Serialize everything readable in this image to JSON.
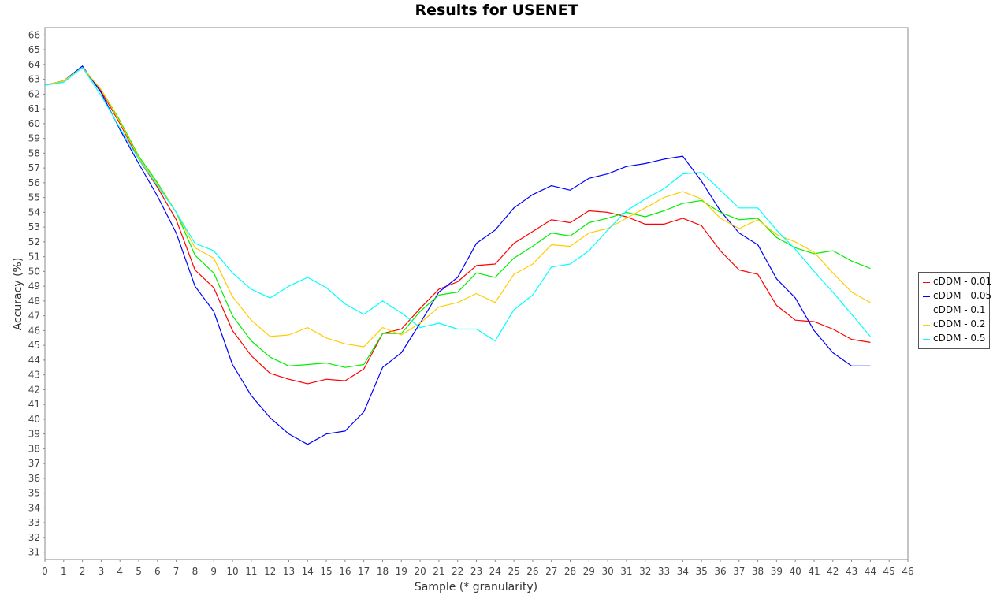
{
  "chart_data": {
    "type": "line",
    "title": "Results for USENET",
    "xlabel": "Sample (* granularity)",
    "ylabel": "Accuracy (%)",
    "xlim": [
      0,
      46
    ],
    "ylim": [
      30.5,
      66.5
    ],
    "x_ticks": [
      0,
      1,
      2,
      3,
      4,
      5,
      6,
      7,
      8,
      9,
      10,
      11,
      12,
      13,
      14,
      15,
      16,
      17,
      18,
      19,
      20,
      21,
      22,
      23,
      24,
      25,
      26,
      27,
      28,
      29,
      30,
      31,
      32,
      33,
      34,
      35,
      36,
      37,
      38,
      39,
      40,
      41,
      42,
      43,
      44,
      45,
      46
    ],
    "y_ticks": [
      31,
      32,
      33,
      34,
      35,
      36,
      37,
      38,
      39,
      40,
      41,
      42,
      43,
      44,
      45,
      46,
      47,
      48,
      49,
      50,
      51,
      52,
      53,
      54,
      55,
      56,
      57,
      58,
      59,
      60,
      61,
      62,
      63,
      64,
      65,
      66
    ],
    "grid": false,
    "legend_position": "right",
    "x": [
      0,
      1,
      2,
      3,
      4,
      5,
      6,
      7,
      8,
      9,
      10,
      11,
      12,
      13,
      14,
      15,
      16,
      17,
      18,
      19,
      20,
      21,
      22,
      23,
      24,
      25,
      26,
      27,
      28,
      29,
      30,
      31,
      32,
      33,
      34,
      35,
      36,
      37,
      38,
      39,
      40,
      41,
      42,
      43,
      44
    ],
    "series": [
      {
        "name": "cDDM - 0.01",
        "color": "#ff0000",
        "values": [
          62.6,
          62.9,
          63.8,
          62.2,
          60.0,
          57.6,
          55.7,
          53.5,
          50.1,
          48.9,
          46.0,
          44.3,
          43.1,
          42.7,
          42.4,
          42.7,
          42.6,
          43.4,
          45.8,
          46.1,
          47.5,
          48.8,
          49.3,
          50.4,
          50.5,
          51.9,
          52.7,
          53.5,
          53.3,
          54.1,
          54.0,
          53.7,
          53.2,
          53.2,
          53.6,
          53.1,
          51.4,
          50.1,
          49.8,
          47.7,
          46.7,
          46.6,
          46.1,
          45.4,
          45.2
        ]
      },
      {
        "name": "cDDM - 0.05",
        "color": "#0000ff",
        "values": [
          62.6,
          62.9,
          63.9,
          62.1,
          59.6,
          57.3,
          55.1,
          52.6,
          49.0,
          47.3,
          43.7,
          41.6,
          40.1,
          39.0,
          38.3,
          39.0,
          39.2,
          40.5,
          43.5,
          44.5,
          46.5,
          48.6,
          49.6,
          51.9,
          52.8,
          54.3,
          55.2,
          55.8,
          55.5,
          56.3,
          56.6,
          57.1,
          57.3,
          57.6,
          57.8,
          56.1,
          54.1,
          52.6,
          51.8,
          49.5,
          48.2,
          46.0,
          44.5,
          43.6,
          43.6
        ]
      },
      {
        "name": "cDDM - 0.1",
        "color": "#00ee00",
        "values": [
          62.6,
          62.9,
          63.8,
          62.3,
          60.2,
          57.8,
          56.0,
          54.0,
          51.1,
          49.9,
          47.0,
          45.3,
          44.2,
          43.6,
          43.7,
          43.8,
          43.5,
          43.7,
          45.8,
          45.8,
          47.3,
          48.4,
          48.6,
          49.9,
          49.6,
          50.9,
          51.7,
          52.6,
          52.4,
          53.3,
          53.6,
          54.0,
          53.7,
          54.1,
          54.6,
          54.8,
          54.0,
          53.5,
          53.6,
          52.3,
          51.6,
          51.2,
          51.4,
          50.7,
          50.2
        ]
      },
      {
        "name": "cDDM - 0.2",
        "color": "#ffcc00",
        "values": [
          62.6,
          62.9,
          63.8,
          62.3,
          60.1,
          57.7,
          55.9,
          54.0,
          51.6,
          50.9,
          48.3,
          46.7,
          45.6,
          45.7,
          46.2,
          45.5,
          45.1,
          44.9,
          46.2,
          45.7,
          46.5,
          47.6,
          47.9,
          48.5,
          47.9,
          49.8,
          50.5,
          51.8,
          51.7,
          52.6,
          52.9,
          53.6,
          54.3,
          55.0,
          55.4,
          54.9,
          53.6,
          52.9,
          53.5,
          52.5,
          52.0,
          51.3,
          49.9,
          48.6,
          47.9
        ]
      },
      {
        "name": "cDDM - 0.5",
        "color": "#00ffff",
        "values": [
          62.6,
          62.8,
          63.8,
          61.9,
          59.7,
          57.6,
          55.8,
          54.0,
          51.9,
          51.4,
          49.9,
          48.8,
          48.2,
          49.0,
          49.6,
          48.9,
          47.8,
          47.1,
          48.0,
          47.2,
          46.2,
          46.5,
          46.1,
          46.1,
          45.3,
          47.4,
          48.4,
          50.3,
          50.5,
          51.4,
          52.8,
          54.1,
          54.9,
          55.6,
          56.6,
          56.7,
          55.5,
          54.3,
          54.3,
          52.8,
          51.5,
          50.0,
          48.6,
          47.1,
          45.6
        ]
      }
    ]
  }
}
